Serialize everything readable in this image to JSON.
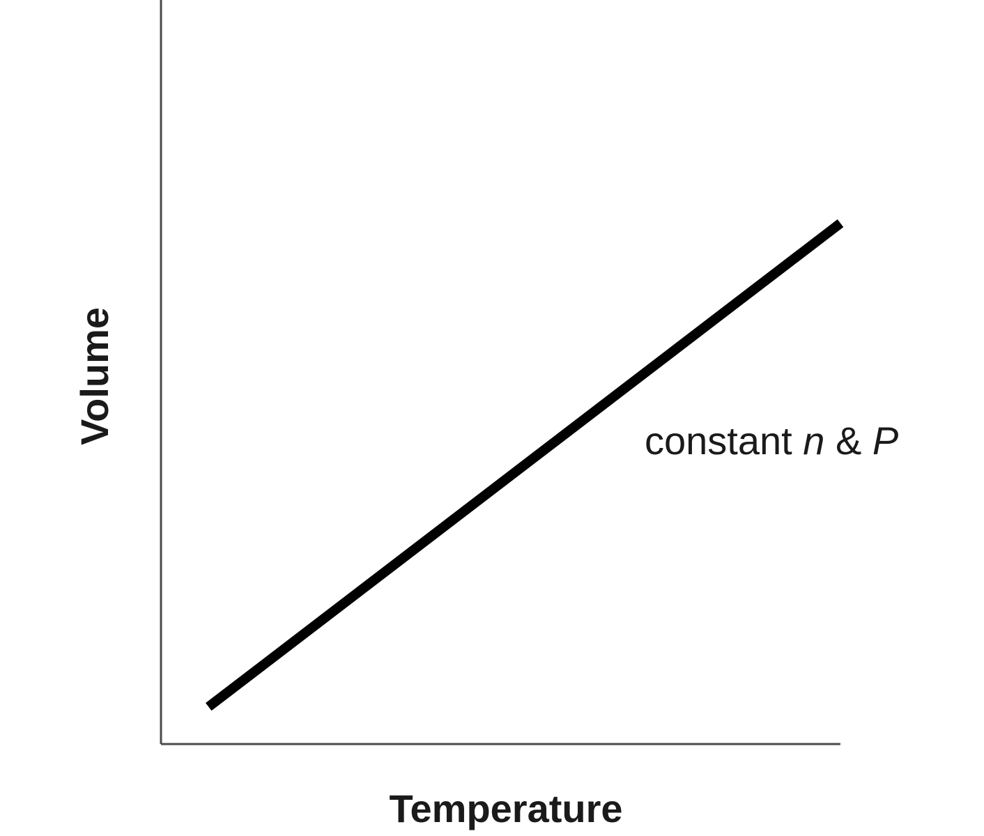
{
  "chart_data": {
    "type": "line",
    "title": "",
    "xlabel": "Temperature",
    "ylabel": "Volume",
    "xlim": [
      0,
      1
    ],
    "ylim": [
      0,
      1
    ],
    "grid": false,
    "ticks": false,
    "series": [
      {
        "x": [
          0.07,
          1.0
        ],
        "y": [
          0.05,
          0.7
        ]
      }
    ],
    "annotation": {
      "prefix": "constant ",
      "var1": "n",
      "joiner": " & ",
      "var2": "P"
    }
  }
}
